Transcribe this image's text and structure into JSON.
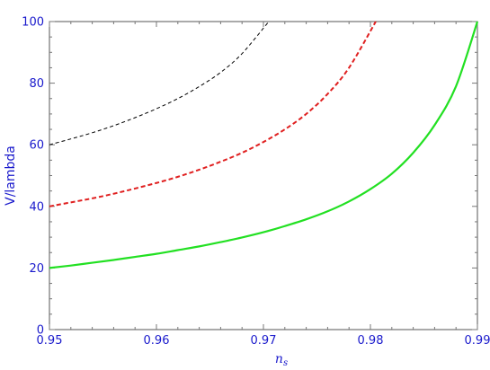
{
  "chart_data": {
    "type": "line",
    "title": "",
    "xlabel": "n",
    "xlabel_subscript": "s",
    "ylabel": "V/lambda",
    "xlim": [
      0.95,
      0.99
    ],
    "ylim": [
      0,
      100
    ],
    "x_ticks": [
      "0.95",
      "0.96",
      "0.97",
      "0.98",
      "0.99"
    ],
    "y_ticks": [
      "0",
      "20",
      "40",
      "60",
      "80",
      "100"
    ],
    "grid": false,
    "legend": "none",
    "series": [
      {
        "style": "dashed-thin",
        "color": "#000000",
        "points": [
          [
            0.95,
            60
          ],
          [
            0.952,
            61.9
          ],
          [
            0.954,
            63.9
          ],
          [
            0.956,
            66.2
          ],
          [
            0.958,
            68.8
          ],
          [
            0.96,
            71.7
          ],
          [
            0.962,
            75.0
          ],
          [
            0.964,
            78.9
          ],
          [
            0.966,
            83.5
          ],
          [
            0.968,
            89.6
          ],
          [
            0.9705,
            100
          ]
        ]
      },
      {
        "style": "dashed-thick",
        "color": "#e02020",
        "points": [
          [
            0.95,
            40
          ],
          [
            0.952,
            41.3
          ],
          [
            0.954,
            42.6
          ],
          [
            0.956,
            44.1
          ],
          [
            0.958,
            45.8
          ],
          [
            0.96,
            47.6
          ],
          [
            0.962,
            49.6
          ],
          [
            0.964,
            51.9
          ],
          [
            0.966,
            54.5
          ],
          [
            0.968,
            57.4
          ],
          [
            0.97,
            60.9
          ],
          [
            0.972,
            65.0
          ],
          [
            0.974,
            70.0
          ],
          [
            0.976,
            76.5
          ],
          [
            0.978,
            85.0
          ],
          [
            0.9805,
            100
          ]
        ]
      },
      {
        "style": "solid",
        "color": "#22e022",
        "points": [
          [
            0.95,
            20
          ],
          [
            0.952,
            20.8
          ],
          [
            0.954,
            21.7
          ],
          [
            0.956,
            22.6
          ],
          [
            0.958,
            23.6
          ],
          [
            0.96,
            24.6
          ],
          [
            0.962,
            25.8
          ],
          [
            0.964,
            27.0
          ],
          [
            0.966,
            28.4
          ],
          [
            0.968,
            29.9
          ],
          [
            0.97,
            31.6
          ],
          [
            0.972,
            33.6
          ],
          [
            0.974,
            35.8
          ],
          [
            0.976,
            38.4
          ],
          [
            0.978,
            41.6
          ],
          [
            0.98,
            45.6
          ],
          [
            0.982,
            50.6
          ],
          [
            0.984,
            57.4
          ],
          [
            0.986,
            66.4
          ],
          [
            0.988,
            79.0
          ],
          [
            0.99,
            100
          ]
        ]
      }
    ]
  }
}
